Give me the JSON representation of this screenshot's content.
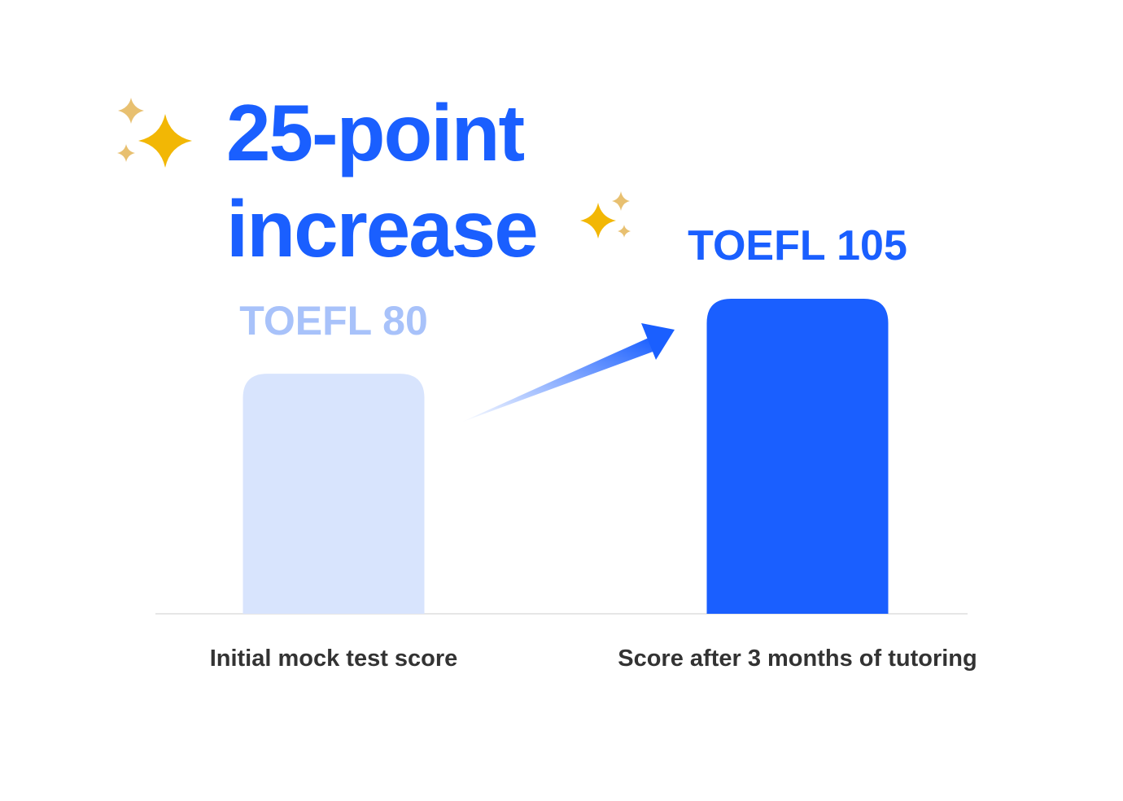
{
  "headline": {
    "line1": "25-point",
    "line2": "increase"
  },
  "colors": {
    "accent": "#1a5fff",
    "initial_bar": "#d8e4fd",
    "initial_label": "#a8c2fa",
    "category_text": "#333333",
    "baseline": "#e6e6e6",
    "sparkle_gold": "#f2b705",
    "sparkle_light": "#e8c070"
  },
  "icons": [
    "sparkles-icon",
    "sparkles-icon",
    "arrow-up-right-icon"
  ],
  "chart_data": {
    "type": "bar",
    "categories": [
      "Initial mock test score",
      "Score after 3 months of tutoring"
    ],
    "values": [
      80,
      105
    ],
    "data_labels": [
      "TOEFL 80",
      "TOEFL 105"
    ],
    "title": "",
    "xlabel": "",
    "ylabel": "",
    "ylim": [
      0,
      105
    ],
    "grid": false,
    "legend": "none"
  }
}
